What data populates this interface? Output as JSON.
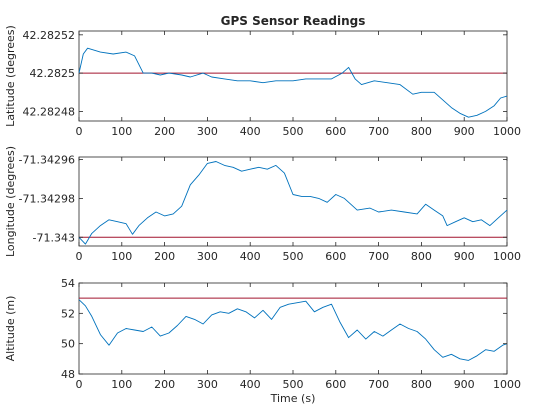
{
  "chart_data": [
    {
      "type": "line",
      "title": "GPS Sensor Readings",
      "xlabel": "",
      "ylabel": "Latitude (degrees)",
      "xlim": [
        0,
        1000
      ],
      "ylim": [
        42.282475,
        42.282522
      ],
      "xticks": [
        0,
        100,
        200,
        300,
        400,
        500,
        600,
        700,
        800,
        900,
        1000
      ],
      "yticks": [
        42.28248,
        42.2825,
        42.28252
      ],
      "yticklabels": [
        "42.28248",
        "42.2825",
        "42.28252"
      ],
      "reference_line": 42.2825,
      "reference_color": "#a2142f",
      "series_color": "#0072bd",
      "x": [
        0,
        10,
        20,
        50,
        80,
        110,
        130,
        150,
        170,
        190,
        210,
        240,
        260,
        290,
        310,
        340,
        370,
        400,
        430,
        460,
        500,
        530,
        560,
        590,
        615,
        630,
        645,
        660,
        690,
        720,
        750,
        780,
        800,
        830,
        850,
        870,
        890,
        910,
        930,
        950,
        970,
        985,
        1000
      ],
      "y": [
        42.2825,
        42.28251,
        42.282513,
        42.282511,
        42.28251,
        42.282511,
        42.282509,
        42.2825,
        42.2825,
        42.282499,
        42.2825,
        42.282499,
        42.282498,
        42.2825,
        42.282498,
        42.282497,
        42.282496,
        42.282496,
        42.282495,
        42.282496,
        42.282496,
        42.282497,
        42.282497,
        42.282497,
        42.2825,
        42.282503,
        42.282497,
        42.282494,
        42.282496,
        42.282495,
        42.282494,
        42.282489,
        42.28249,
        42.28249,
        42.282486,
        42.282482,
        42.282479,
        42.282477,
        42.282478,
        42.28248,
        42.282483,
        42.282487,
        42.282488
      ]
    },
    {
      "type": "line",
      "title": "",
      "xlabel": "",
      "ylabel": "Longitude (degrees)",
      "xlim": [
        0,
        1000
      ],
      "ylim": [
        -71.3430045,
        -71.3429587
      ],
      "xticks": [
        0,
        100,
        200,
        300,
        400,
        500,
        600,
        700,
        800,
        900,
        1000
      ],
      "yticks": [
        -71.343,
        -71.34298,
        -71.34296
      ],
      "yticklabels": [
        "-71.343",
        "-71.34298",
        "-71.34296"
      ],
      "reference_line": -71.343,
      "reference_color": "#a2142f",
      "series_color": "#0072bd",
      "x": [
        0,
        15,
        30,
        50,
        70,
        90,
        110,
        125,
        140,
        160,
        180,
        200,
        220,
        240,
        260,
        280,
        300,
        320,
        340,
        360,
        380,
        400,
        420,
        440,
        460,
        480,
        500,
        520,
        540,
        560,
        580,
        600,
        620,
        650,
        680,
        700,
        730,
        760,
        790,
        810,
        830,
        850,
        860,
        880,
        900,
        920,
        940,
        960,
        980,
        1000
      ],
      "y": [
        -71.343,
        -71.3430035,
        -71.342998,
        -71.342994,
        -71.342991,
        -71.342992,
        -71.342993,
        -71.3429985,
        -71.342994,
        -71.34299,
        -71.342987,
        -71.342989,
        -71.342988,
        -71.342984,
        -71.342973,
        -71.342968,
        -71.342962,
        -71.342961,
        -71.342963,
        -71.342964,
        -71.342966,
        -71.342965,
        -71.342964,
        -71.342965,
        -71.342963,
        -71.342967,
        -71.342978,
        -71.342979,
        -71.342979,
        -71.34298,
        -71.342982,
        -71.342978,
        -71.34298,
        -71.342986,
        -71.342985,
        -71.342987,
        -71.342986,
        -71.342987,
        -71.342988,
        -71.342983,
        -71.342986,
        -71.342989,
        -71.342994,
        -71.342992,
        -71.34299,
        -71.342992,
        -71.342991,
        -71.342994,
        -71.34299,
        -71.342986
      ]
    },
    {
      "type": "line",
      "title": "",
      "xlabel": "Time (s)",
      "ylabel": "Altitude (m)",
      "xlim": [
        0,
        1000
      ],
      "ylim": [
        48,
        54
      ],
      "xticks": [
        0,
        100,
        200,
        300,
        400,
        500,
        600,
        700,
        800,
        900,
        1000
      ],
      "yticks": [
        48,
        50,
        52,
        54
      ],
      "yticklabels": [
        "48",
        "50",
        "52",
        "54"
      ],
      "reference_line": 53,
      "reference_color": "#a2142f",
      "series_color": "#0072bd",
      "x": [
        0,
        15,
        30,
        50,
        70,
        90,
        110,
        130,
        150,
        170,
        190,
        210,
        230,
        250,
        270,
        290,
        310,
        330,
        350,
        370,
        390,
        410,
        430,
        450,
        470,
        490,
        510,
        530,
        550,
        570,
        590,
        610,
        630,
        650,
        670,
        690,
        710,
        730,
        750,
        770,
        790,
        810,
        830,
        850,
        870,
        890,
        910,
        930,
        950,
        970,
        990,
        1000
      ],
      "y": [
        52.9,
        52.5,
        51.8,
        50.6,
        49.9,
        50.7,
        51.0,
        50.9,
        50.8,
        51.1,
        50.5,
        50.7,
        51.2,
        51.8,
        51.6,
        51.3,
        51.9,
        52.1,
        52.0,
        52.3,
        52.1,
        51.7,
        52.2,
        51.6,
        52.4,
        52.6,
        52.7,
        52.8,
        52.1,
        52.4,
        52.6,
        51.4,
        50.4,
        50.9,
        50.3,
        50.8,
        50.5,
        50.9,
        51.3,
        51.0,
        50.8,
        50.3,
        49.6,
        49.1,
        49.3,
        49.0,
        48.9,
        49.2,
        49.6,
        49.5,
        49.9,
        50.0
      ]
    }
  ]
}
